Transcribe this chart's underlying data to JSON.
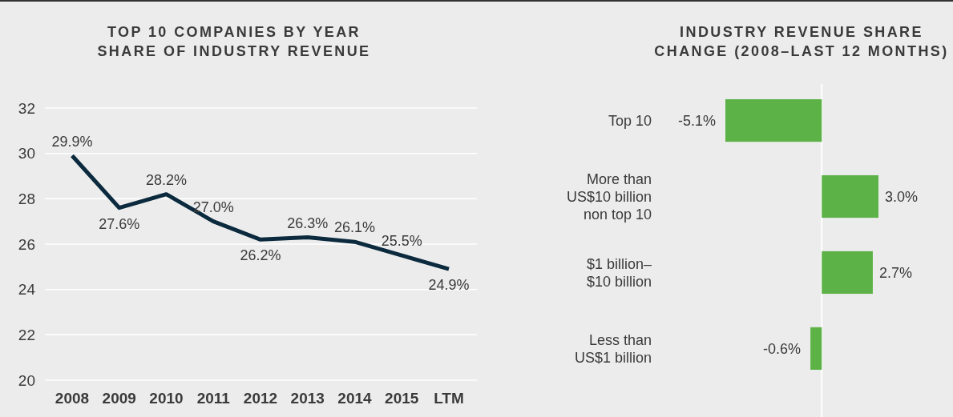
{
  "chart_data": [
    {
      "type": "line",
      "title": "TOP 10 COMPANIES BY YEAR\nSHARE OF INDUSTRY REVENUE",
      "categories": [
        "2008",
        "2009",
        "2010",
        "2011",
        "2012",
        "2013",
        "2014",
        "2015",
        "LTM"
      ],
      "series": [
        {
          "color": "#0b2a3e",
          "values": [
            29.9,
            27.6,
            28.2,
            27.0,
            26.2,
            26.3,
            26.1,
            25.5,
            24.9
          ],
          "value_labels": [
            "29.9%",
            "27.6%",
            "28.2%",
            "27.0%",
            "26.2%",
            "26.3%",
            "26.1%",
            "25.5%",
            "24.9%"
          ]
        }
      ],
      "ylim": [
        20,
        32
      ],
      "yticks": [
        20,
        22,
        24,
        26,
        28,
        30,
        32
      ],
      "grid": "y",
      "marker": "none",
      "line_style": "solid"
    },
    {
      "type": "bar",
      "orientation": "horizontal",
      "title": "INDUSTRY REVENUE SHARE\nCHANGE (2008–LAST 12 MONTHS)",
      "categories": [
        "Top 10",
        "More than\nUS$10 billion\nnon top 10",
        "$1 billion–\n$10 billion",
        "Less than\nUS$1 billion"
      ],
      "values": [
        -5.1,
        3.0,
        2.7,
        -0.6
      ],
      "value_labels": [
        "-5.1%",
        "3.0%",
        "2.7%",
        "-0.6%"
      ],
      "color": "#5cb247"
    }
  ]
}
